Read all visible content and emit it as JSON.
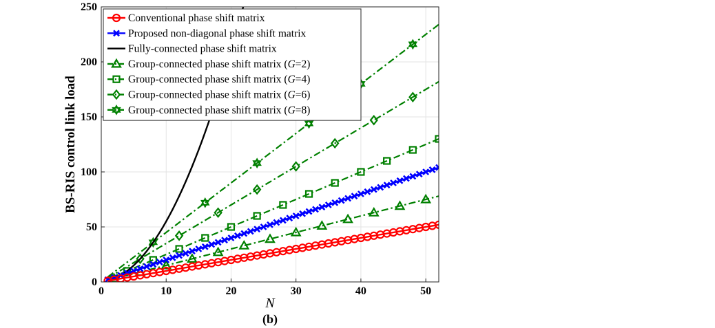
{
  "chart_data": {
    "type": "line",
    "title": "",
    "caption": "(b)",
    "xlabel": "N",
    "ylabel": "BS-RIS control link load",
    "xlim": [
      0,
      52
    ],
    "ylim": [
      0,
      250
    ],
    "xticks": [
      0,
      10,
      20,
      30,
      40,
      50
    ],
    "yticks": [
      0,
      50,
      100,
      150,
      200,
      250
    ],
    "grid": true,
    "legend_position": "top-left",
    "series": [
      {
        "name": "Conventional phase shift matrix",
        "formula": "N",
        "color": "#ff0000",
        "marker": "circle",
        "line": "solid",
        "marker_x": [
          1,
          2,
          3,
          4,
          5,
          6,
          7,
          8,
          9,
          10,
          11,
          12,
          13,
          14,
          15,
          16,
          17,
          18,
          19,
          20,
          21,
          22,
          23,
          24,
          25,
          26,
          27,
          28,
          29,
          30,
          31,
          32,
          33,
          34,
          35,
          36,
          37,
          38,
          39,
          40,
          41,
          42,
          43,
          44,
          45,
          46,
          47,
          48,
          49,
          50,
          51,
          52
        ]
      },
      {
        "name": "Proposed non-diagonal phase shift matrix",
        "formula": "2N",
        "color": "#0000ff",
        "marker": "x",
        "line": "solid",
        "marker_x": [
          1,
          2,
          3,
          4,
          5,
          6,
          7,
          8,
          9,
          10,
          11,
          12,
          13,
          14,
          15,
          16,
          17,
          18,
          19,
          20,
          21,
          22,
          23,
          24,
          25,
          26,
          27,
          28,
          29,
          30,
          31,
          32,
          33,
          34,
          35,
          36,
          37,
          38,
          39,
          40,
          41,
          42,
          43,
          44,
          45,
          46,
          47,
          48,
          49,
          50,
          51,
          52
        ]
      },
      {
        "name": "Fully-connected phase shift matrix",
        "formula": "N(N+1)/2",
        "color": "#000000",
        "marker": "none",
        "line": "solid",
        "marker_x": []
      },
      {
        "name": "Group-connected phase shift matrix (",
        "g_label": "G",
        "g_value": "=2)",
        "formula": "N(G+1)/2",
        "G": 2,
        "color": "#008000",
        "marker": "triangle",
        "line": "dashdot",
        "marker_x": [
          2,
          6,
          10,
          14,
          18,
          22,
          26,
          30,
          34,
          38,
          42,
          46,
          50
        ]
      },
      {
        "name": "Group-connected phase shift matrix (",
        "g_label": "G",
        "g_value": "=4)",
        "formula": "N(G+1)/2",
        "G": 4,
        "color": "#008000",
        "marker": "square",
        "line": "dashdot",
        "marker_x": [
          4,
          8,
          12,
          16,
          20,
          24,
          28,
          32,
          36,
          40,
          44,
          48,
          52
        ]
      },
      {
        "name": "Group-connected phase shift matrix (",
        "g_label": "G",
        "g_value": "=6)",
        "formula": "N(G+1)/2",
        "G": 6,
        "color": "#008000",
        "marker": "diamond",
        "line": "dashdot",
        "marker_x": [
          6,
          12,
          18,
          24,
          30,
          36,
          42,
          48
        ]
      },
      {
        "name": "Group-connected phase shift matrix (",
        "g_label": "G",
        "g_value": "=8)",
        "formula": "N(G+1)/2",
        "G": 8,
        "color": "#008000",
        "marker": "hexagram",
        "line": "dashdot",
        "marker_x": [
          8,
          16,
          24,
          32,
          40,
          48
        ]
      }
    ]
  }
}
